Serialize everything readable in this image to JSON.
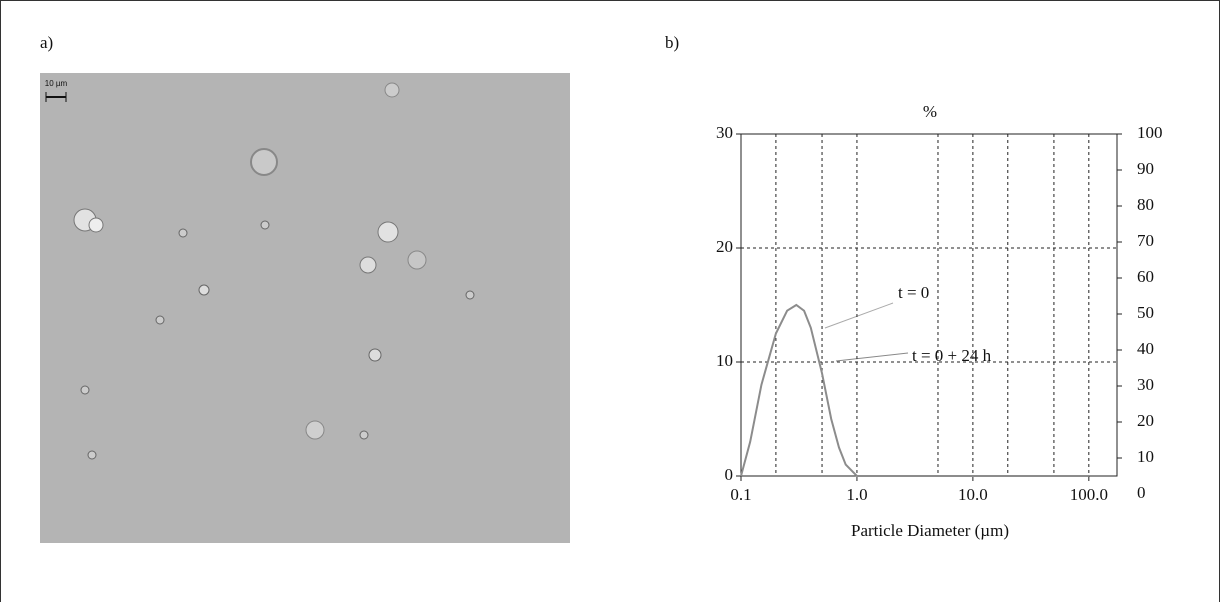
{
  "panel_labels": [
    "a)",
    "b)"
  ],
  "scale_bar": "10 µm",
  "chart_data": {
    "type": "line",
    "title": "%",
    "xlabel": "Particle Diameter (µm)",
    "x": [
      0.1,
      0.12,
      0.15,
      0.2,
      0.25,
      0.3,
      0.35,
      0.4,
      0.5,
      0.6,
      0.7,
      0.8,
      1.0,
      2.0,
      10.0,
      100.0
    ],
    "series": [
      {
        "color": "#8c8c8c",
        "values": [
          0,
          3,
          8,
          12.5,
          14.5,
          15,
          14.5,
          13,
          9,
          5,
          2.5,
          1,
          0,
          0,
          0,
          0
        ]
      }
    ],
    "xscale": "log",
    "xlim": [
      0.1,
      175
    ],
    "xticks": [
      {
        "value": 0.1,
        "label": "0.1"
      },
      {
        "value": 1,
        "label": "1.0"
      },
      {
        "value": 10,
        "label": "10.0"
      },
      {
        "value": 100,
        "label": "100.0"
      }
    ],
    "xgrid": [
      0.2,
      0.5,
      1,
      5,
      10,
      20,
      50,
      100
    ],
    "ylim": [
      0,
      30
    ],
    "yticks": [
      0,
      10,
      20,
      30
    ],
    "ygrid": [
      10,
      20
    ],
    "y2lim": [
      5,
      100
    ],
    "y2ticks": [
      0,
      10,
      20,
      30,
      40,
      50,
      60,
      70,
      80,
      90,
      100
    ],
    "annotations": [
      {
        "text": "t = 0"
      },
      {
        "text": "t = 0 + 24 h"
      }
    ]
  }
}
